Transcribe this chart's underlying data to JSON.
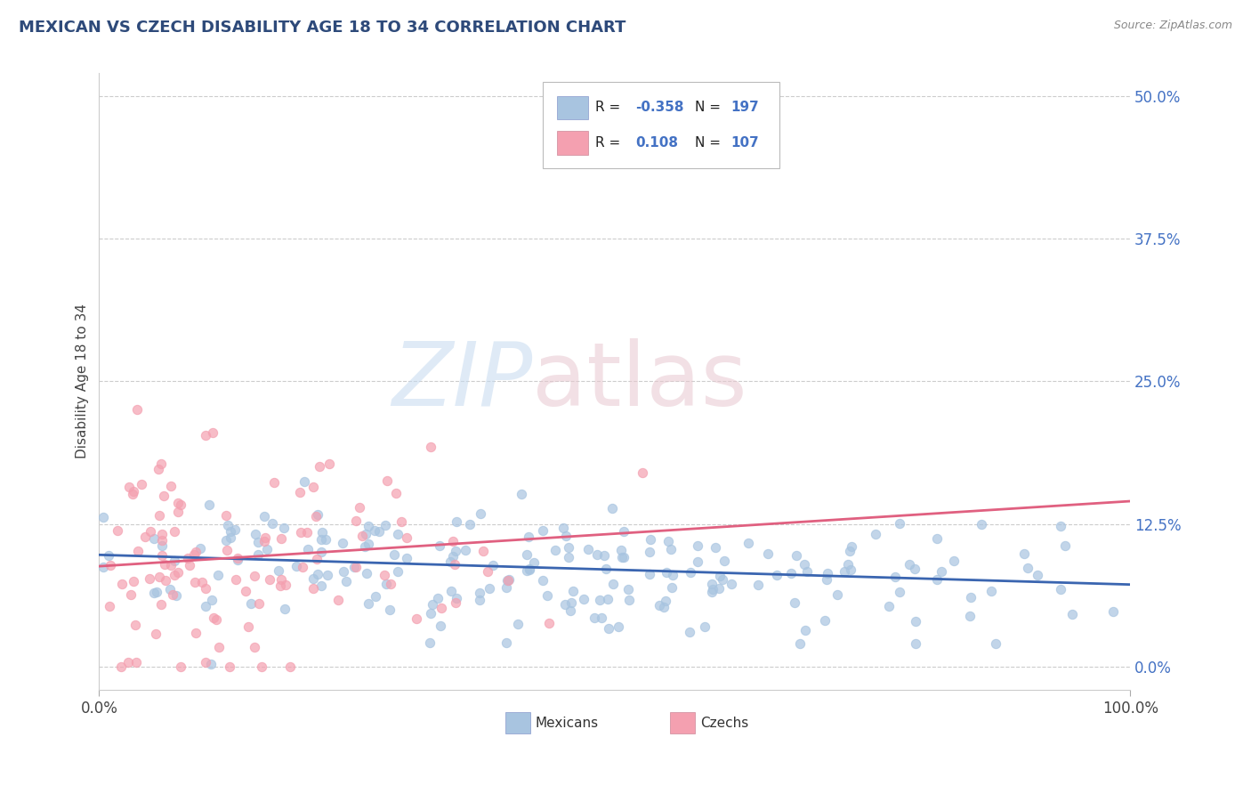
{
  "title": "MEXICAN VS CZECH DISABILITY AGE 18 TO 34 CORRELATION CHART",
  "source_text": "Source: ZipAtlas.com",
  "ylabel": "Disability Age 18 to 34",
  "xlim": [
    0.0,
    1.0
  ],
  "ylim": [
    -0.02,
    0.52
  ],
  "yticks": [
    0.0,
    0.125,
    0.25,
    0.375,
    0.5
  ],
  "ytick_labels": [
    "0.0%",
    "12.5%",
    "25.0%",
    "37.5%",
    "50.0%"
  ],
  "xticks": [
    0.0,
    1.0
  ],
  "xtick_labels": [
    "0.0%",
    "100.0%"
  ],
  "mexicans_R": -0.358,
  "mexicans_N": 197,
  "czechs_R": 0.108,
  "czechs_N": 107,
  "mexican_color": "#a8c4e0",
  "czech_color": "#f4a0b0",
  "mexican_line_color": "#3a65b0",
  "czech_line_color": "#e06080",
  "background_color": "#ffffff",
  "title_color": "#2e4a7a",
  "source_color": "#888888",
  "legend_label_mexicans": "Mexicans",
  "legend_label_czechs": "Czechs"
}
